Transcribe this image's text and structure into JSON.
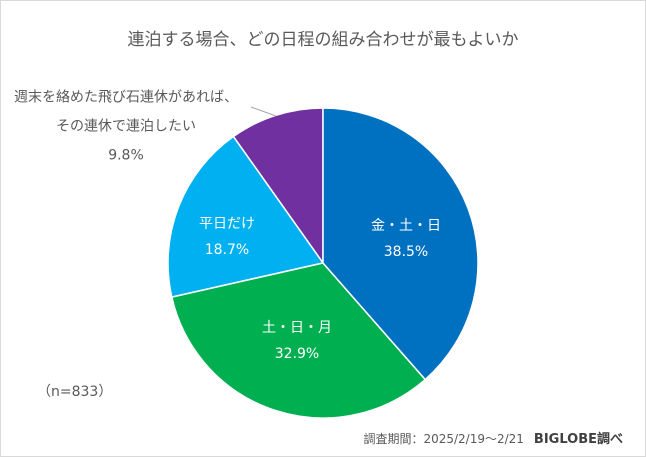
{
  "chart_data": {
    "type": "pie",
    "title": "連泊する場合、どの日程の組み合わせが最もよいか",
    "slices": [
      {
        "label": "金・土・日",
        "value": 38.5,
        "value_label": "38.5%",
        "color": "#0070C0"
      },
      {
        "label": "土・日・月",
        "value": 32.9,
        "value_label": "32.9%",
        "color": "#00B050"
      },
      {
        "label": "平日だけ",
        "value": 18.7,
        "value_label": "18.7%",
        "color": "#00B0F0"
      },
      {
        "label_line1": "週末を絡めた飛び石連休があれば、",
        "label_line2": "その連休で連泊したい",
        "label": "週末を絡めた飛び石連休があれば、その連休で連泊したい",
        "value": 9.8,
        "value_label": "9.8%",
        "color": "#7030A0"
      }
    ],
    "start_angle": "top",
    "direction": "clockwise",
    "sample_size": "（n=833）",
    "survey_period": "調査期間：2025/2/19～2/21",
    "source": "BIGLOBE調べ"
  }
}
